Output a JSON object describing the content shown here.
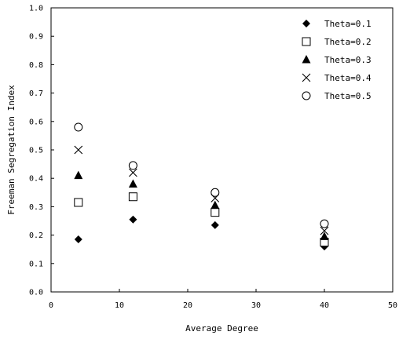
{
  "chart_data": {
    "type": "scatter",
    "title": "",
    "xlabel": "Average Degree",
    "ylabel": "Freeman Segregation Index",
    "xlim": [
      0,
      50
    ],
    "ylim": [
      0,
      1.0
    ],
    "x_ticks": [
      "0",
      "10",
      "20",
      "30",
      "40",
      "50"
    ],
    "y_ticks": [
      "0.0",
      "0.1",
      "0.2",
      "0.3",
      "0.4",
      "0.5",
      "0.6",
      "0.7",
      "0.8",
      "0.9",
      "1.0"
    ],
    "grid": false,
    "legend_position": "top-right",
    "series": [
      {
        "name": "Theta=0.1",
        "marker": "filled-diamond",
        "x": [
          4,
          12,
          24,
          40
        ],
        "y": [
          0.185,
          0.255,
          0.235,
          0.16
        ]
      },
      {
        "name": "Theta=0.2",
        "marker": "open-square",
        "x": [
          4,
          12,
          24,
          40
        ],
        "y": [
          0.315,
          0.335,
          0.28,
          0.175
        ]
      },
      {
        "name": "Theta=0.3",
        "marker": "filled-triangle",
        "x": [
          4,
          12,
          24,
          40
        ],
        "y": [
          0.41,
          0.38,
          0.305,
          0.195
        ]
      },
      {
        "name": "Theta=0.4",
        "marker": "cross",
        "x": [
          4,
          12,
          24,
          40
        ],
        "y": [
          0.5,
          0.42,
          0.33,
          0.215
        ]
      },
      {
        "name": "Theta=0.5",
        "marker": "open-circle",
        "x": [
          4,
          12,
          24,
          40
        ],
        "y": [
          0.58,
          0.445,
          0.35,
          0.24
        ]
      }
    ]
  }
}
